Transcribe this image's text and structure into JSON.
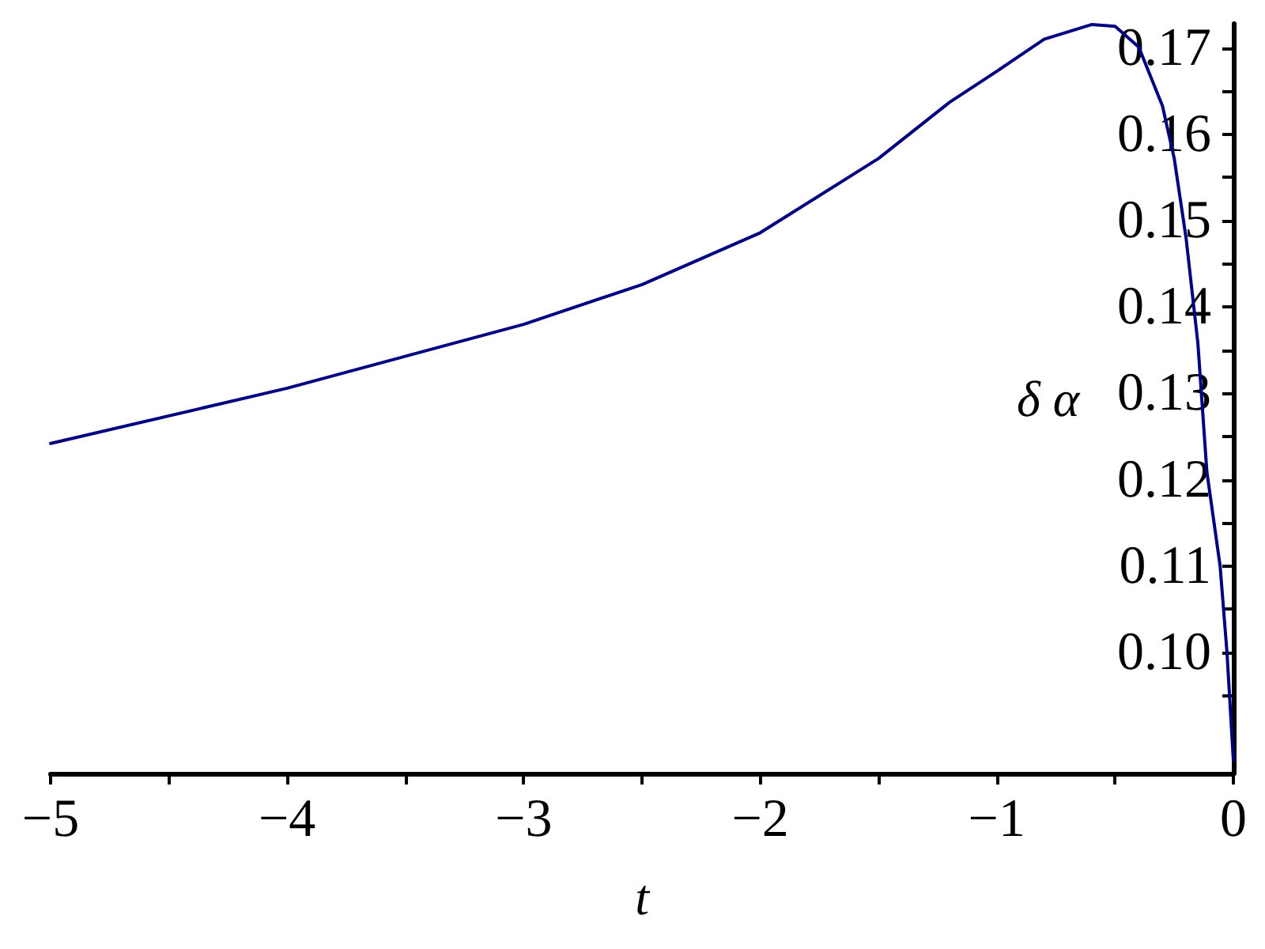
{
  "chart_data": {
    "type": "line",
    "xlabel": "t",
    "ylabel": "δ α",
    "x": [
      -5,
      -4,
      -3,
      -2.5,
      -2,
      -1.5,
      -1.2,
      -1,
      -0.8,
      -0.6,
      -0.5,
      -0.4,
      -0.3,
      -0.25,
      -0.2,
      -0.15,
      -0.112,
      -0.056,
      -0.027,
      0
    ],
    "series": [
      {
        "color": "#000080",
        "values": [
          0.1242,
          0.1306,
          0.138,
          0.1426,
          0.1486,
          0.1572,
          0.1637,
          0.1673,
          0.171,
          0.1727,
          0.1725,
          0.1701,
          0.1633,
          0.1572,
          0.148,
          0.1358,
          0.1209,
          0.11,
          0.1,
          0.0875
        ]
      }
    ],
    "xlim": [
      -5,
      0
    ],
    "ylim": [
      0.086,
      0.1728
    ],
    "xticks": [
      -5,
      -4,
      -3,
      -2,
      -1,
      0,
      {
        "value": -4.5,
        "label": null
      },
      {
        "value": -3.5,
        "label": null
      },
      {
        "value": -2.5,
        "label": null
      },
      {
        "value": -1.5,
        "label": null
      },
      {
        "value": -0.5,
        "label": null
      }
    ],
    "yticks": [
      {
        "value": 0.1,
        "label": "0.10"
      },
      0.11,
      0.12,
      0.13,
      0.14,
      0.15,
      0.16,
      0.17,
      {
        "value": 0.095,
        "label": null
      },
      {
        "value": 0.105,
        "label": null
      },
      {
        "value": 0.115,
        "label": null
      },
      {
        "value": 0.125,
        "label": null
      },
      {
        "value": 0.135,
        "label": null
      },
      {
        "value": 0.145,
        "label": null
      },
      {
        "value": 0.155,
        "label": null
      },
      {
        "value": 0.165,
        "label": null
      }
    ],
    "grid": false,
    "marker": "none",
    "line_style": "solid"
  }
}
